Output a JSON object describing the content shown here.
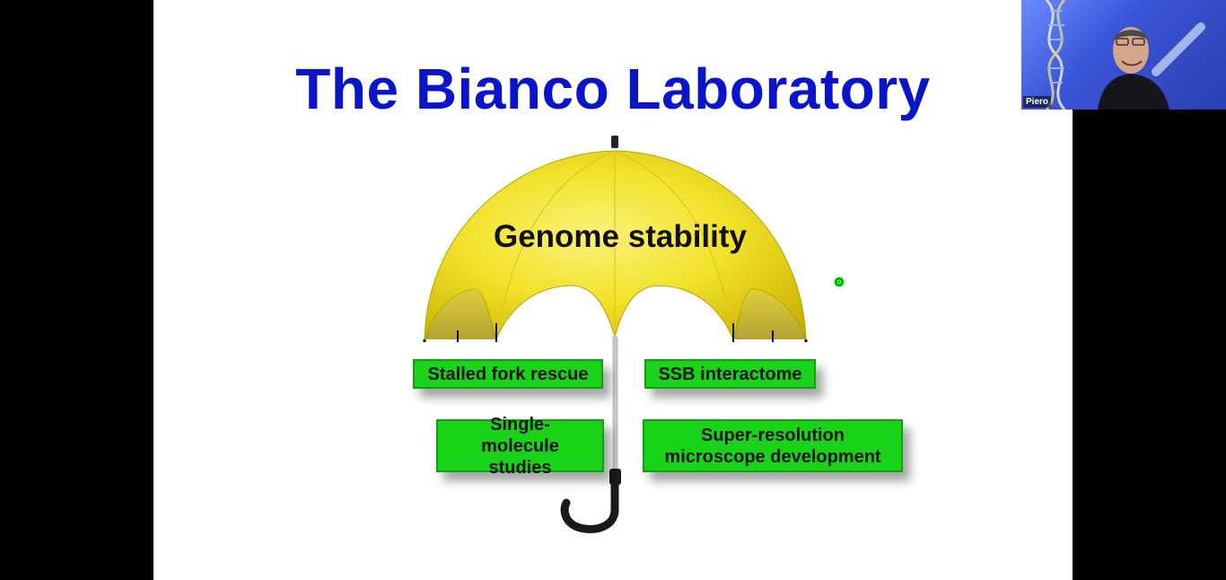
{
  "slide": {
    "title": "The Bianco Laboratory",
    "canopy_label": "Genome stability",
    "topics": [
      {
        "label": "Stalled fork rescue"
      },
      {
        "label": "SSB interactome"
      },
      {
        "label": "Single-molecule studies"
      },
      {
        "label": "Super-resolution microscope development"
      }
    ]
  },
  "video": {
    "participant_name": "Piero"
  },
  "colors": {
    "title": "#0a14c8",
    "canopy": "#f2e22a",
    "topic_box": "#19d319",
    "pointer": "#1fff1f"
  }
}
